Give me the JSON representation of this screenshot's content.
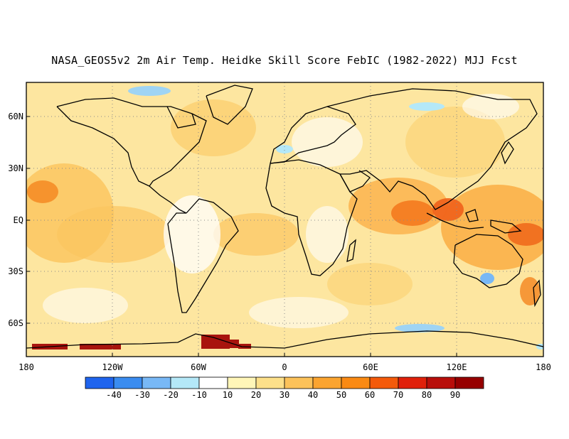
{
  "title": "NASA_GEOS5v2 2m Air Temp. Heidke Skill Score FebIC (1982-2022) MJJ Fcst",
  "lat_labels": [
    "60N",
    "30N",
    "EQ",
    "30S",
    "60S"
  ],
  "lon_labels": [
    "180",
    "120W",
    "60W",
    "0",
    "60E",
    "120E",
    "180"
  ],
  "colorbar": {
    "tick_labels": [
      "-40",
      "-30",
      "-20",
      "-10",
      "10",
      "20",
      "30",
      "40",
      "50",
      "60",
      "70",
      "80",
      "90"
    ],
    "colors": [
      "#1f64ee",
      "#3a8cf0",
      "#78b8f6",
      "#b4e8f8",
      "#ffffff",
      "#fff6b8",
      "#fde08a",
      "#fcc25a",
      "#fba430",
      "#fa8a14",
      "#f45a0a",
      "#e0200a",
      "#b80e0a",
      "#960000"
    ]
  }
}
